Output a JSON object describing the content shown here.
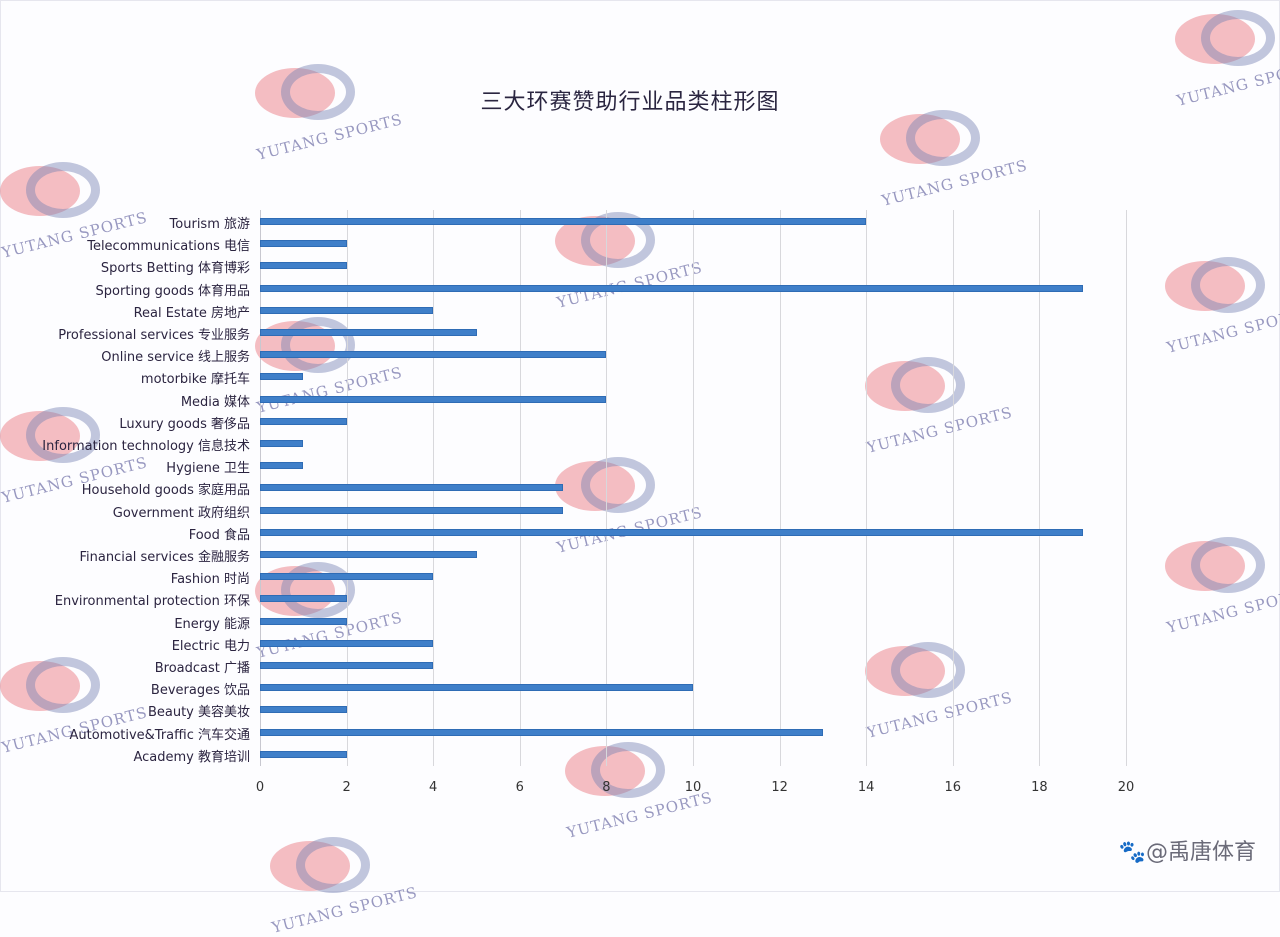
{
  "title": "三大环赛赞助行业品类柱形图",
  "footer_brand": "🐾@禹唐体育",
  "watermark_text": "YUTANG SPORTS",
  "chart_data": {
    "type": "bar",
    "orientation": "horizontal",
    "title": "三大环赛赞助行业品类柱形图",
    "xlabel": "",
    "ylabel": "",
    "xlim": [
      0,
      20
    ],
    "xticks": [
      0,
      2,
      4,
      6,
      8,
      10,
      12,
      14,
      16,
      18,
      20
    ],
    "grid": true,
    "legend": "none",
    "bar_color": "#3f7fc9",
    "categories": [
      "Tourism 旅游",
      "Telecommunications 电信",
      "Sports Betting 体育博彩",
      "Sporting goods 体育用品",
      "Real Estate 房地产",
      "Professional services 专业服务",
      "Online service 线上服务",
      "motorbike 摩托车",
      "Media 媒体",
      "Luxury goods 奢侈品",
      "Information technology 信息技术",
      "Hygiene 卫生",
      "Household goods 家庭用品",
      "Government 政府组织",
      "Food 食品",
      "Financial services 金融服务",
      "Fashion 时尚",
      "Environmental protection 环保",
      "Energy 能源",
      "Electric 电力",
      "Broadcast 广播",
      "Beverages 饮品",
      "Beauty 美容美妆",
      "Automotive&Traffic 汽车交通",
      "Academy 教育培训"
    ],
    "values": [
      14,
      2,
      2,
      19,
      4,
      5,
      8,
      1,
      8,
      2,
      1,
      1,
      7,
      7,
      19,
      5,
      4,
      2,
      2,
      4,
      4,
      10,
      2,
      13,
      2
    ]
  }
}
